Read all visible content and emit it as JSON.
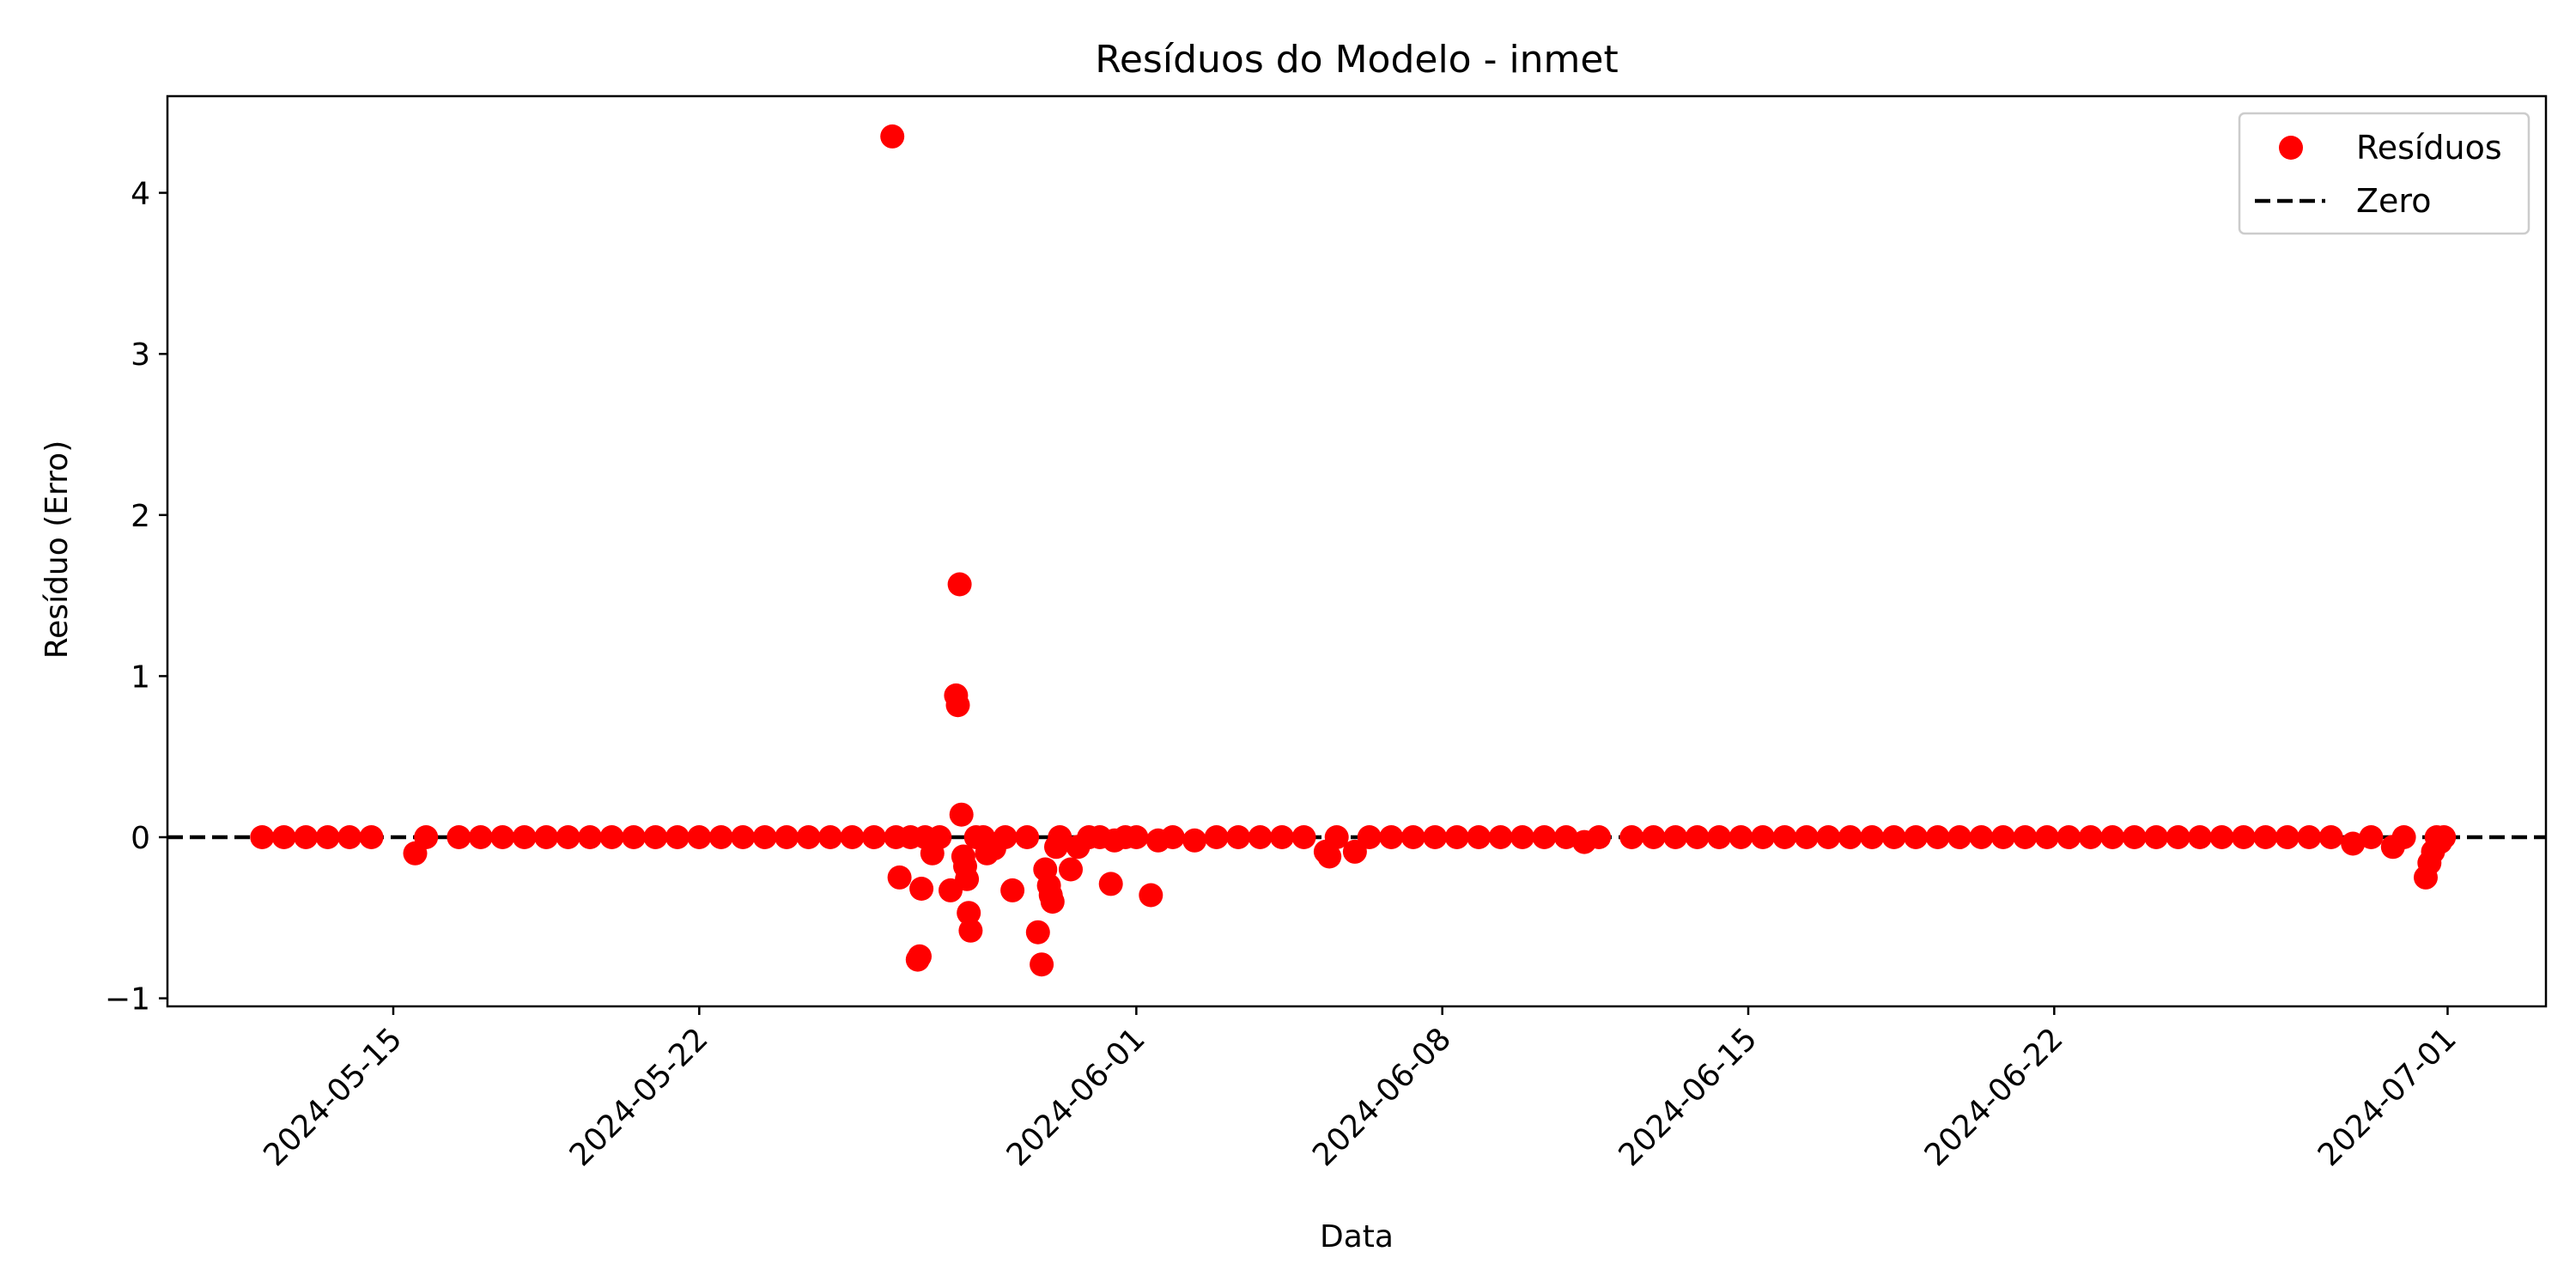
{
  "chart_data": {
    "type": "scatter",
    "title": "Resíduos do Modelo - inmet",
    "xlabel": "Data",
    "ylabel": "Resíduo (Erro)",
    "xlim": [
      "2024-05-09T20:00",
      "2024-07-03T06:00"
    ],
    "ylim": [
      -1.05,
      4.6
    ],
    "x_ticks": [
      "2024-05-15",
      "2024-05-22",
      "2024-06-01",
      "2024-06-08",
      "2024-06-15",
      "2024-06-22",
      "2024-07-01"
    ],
    "y_ticks": [
      -1,
      0,
      1,
      2,
      3,
      4
    ],
    "y_tick_labels": [
      "−1",
      "0",
      "1",
      "2",
      "3",
      "4"
    ],
    "grid": false,
    "legend": {
      "location": "upper right",
      "entries": [
        {
          "label": "Resíduos",
          "marker": "circle",
          "color": "#ff0000"
        },
        {
          "label": "Zero",
          "marker": "dashed-line",
          "color": "#000000"
        }
      ]
    },
    "reference_line": {
      "y": 0,
      "style": "dashed",
      "color": "#000000"
    },
    "series": [
      {
        "name": "Resíduos",
        "color": "#ff0000",
        "points": [
          {
            "x": "2024-05-12T00:00",
            "y": 0
          },
          {
            "x": "2024-05-12T12:00",
            "y": 0
          },
          {
            "x": "2024-05-13T00:00",
            "y": 0
          },
          {
            "x": "2024-05-13T12:00",
            "y": 0
          },
          {
            "x": "2024-05-14T00:00",
            "y": 0
          },
          {
            "x": "2024-05-14T12:00",
            "y": 0
          },
          {
            "x": "2024-05-15T12:00",
            "y": -0.1
          },
          {
            "x": "2024-05-15T18:00",
            "y": 0
          },
          {
            "x": "2024-05-16T12:00",
            "y": 0
          },
          {
            "x": "2024-05-17T00:00",
            "y": 0
          },
          {
            "x": "2024-05-17T12:00",
            "y": 0
          },
          {
            "x": "2024-05-18T00:00",
            "y": 0
          },
          {
            "x": "2024-05-18T12:00",
            "y": 0
          },
          {
            "x": "2024-05-19T00:00",
            "y": 0
          },
          {
            "x": "2024-05-19T12:00",
            "y": 0
          },
          {
            "x": "2024-05-20T00:00",
            "y": 0
          },
          {
            "x": "2024-05-20T12:00",
            "y": 0
          },
          {
            "x": "2024-05-21T00:00",
            "y": 0
          },
          {
            "x": "2024-05-21T12:00",
            "y": 0
          },
          {
            "x": "2024-05-22T00:00",
            "y": 0
          },
          {
            "x": "2024-05-22T12:00",
            "y": 0
          },
          {
            "x": "2024-05-23T00:00",
            "y": 0
          },
          {
            "x": "2024-05-23T12:00",
            "y": 0
          },
          {
            "x": "2024-05-24T00:00",
            "y": 0
          },
          {
            "x": "2024-05-24T12:00",
            "y": 0
          },
          {
            "x": "2024-05-25T00:00",
            "y": 0
          },
          {
            "x": "2024-05-25T12:00",
            "y": 0
          },
          {
            "x": "2024-05-26T00:00",
            "y": 0
          },
          {
            "x": "2024-05-26T10:00",
            "y": 4.35
          },
          {
            "x": "2024-05-26T12:00",
            "y": 0
          },
          {
            "x": "2024-05-26T14:00",
            "y": -0.25
          },
          {
            "x": "2024-05-26T20:00",
            "y": 0
          },
          {
            "x": "2024-05-27T00:00",
            "y": -0.76
          },
          {
            "x": "2024-05-27T01:00",
            "y": -0.74
          },
          {
            "x": "2024-05-27T02:00",
            "y": -0.32
          },
          {
            "x": "2024-05-27T04:00",
            "y": 0
          },
          {
            "x": "2024-05-27T08:00",
            "y": -0.1
          },
          {
            "x": "2024-05-27T12:00",
            "y": 0
          },
          {
            "x": "2024-05-27T18:00",
            "y": -0.33
          },
          {
            "x": "2024-05-27T21:00",
            "y": 0.88
          },
          {
            "x": "2024-05-27T22:00",
            "y": 0.82
          },
          {
            "x": "2024-05-27T23:00",
            "y": 1.57
          },
          {
            "x": "2024-05-28T00:00",
            "y": 0.14
          },
          {
            "x": "2024-05-28T01:00",
            "y": -0.12
          },
          {
            "x": "2024-05-28T02:00",
            "y": -0.18
          },
          {
            "x": "2024-05-28T03:00",
            "y": -0.26
          },
          {
            "x": "2024-05-28T04:00",
            "y": -0.47
          },
          {
            "x": "2024-05-28T05:00",
            "y": -0.58
          },
          {
            "x": "2024-05-28T08:00",
            "y": 0
          },
          {
            "x": "2024-05-28T12:00",
            "y": 0
          },
          {
            "x": "2024-05-28T14:00",
            "y": -0.1
          },
          {
            "x": "2024-05-28T18:00",
            "y": -0.07
          },
          {
            "x": "2024-05-29T00:00",
            "y": 0
          },
          {
            "x": "2024-05-29T04:00",
            "y": -0.33
          },
          {
            "x": "2024-05-29T12:00",
            "y": 0
          },
          {
            "x": "2024-05-29T18:00",
            "y": -0.59
          },
          {
            "x": "2024-05-29T20:00",
            "y": -0.79
          },
          {
            "x": "2024-05-29T22:00",
            "y": -0.2
          },
          {
            "x": "2024-05-30T00:00",
            "y": -0.3
          },
          {
            "x": "2024-05-30T01:00",
            "y": -0.36
          },
          {
            "x": "2024-05-30T02:00",
            "y": -0.4
          },
          {
            "x": "2024-05-30T04:00",
            "y": -0.06
          },
          {
            "x": "2024-05-30T06:00",
            "y": 0
          },
          {
            "x": "2024-05-30T12:00",
            "y": -0.2
          },
          {
            "x": "2024-05-30T16:00",
            "y": -0.06
          },
          {
            "x": "2024-05-30T22:00",
            "y": 0
          },
          {
            "x": "2024-05-31T04:00",
            "y": 0
          },
          {
            "x": "2024-05-31T10:00",
            "y": -0.29
          },
          {
            "x": "2024-05-31T12:00",
            "y": -0.02
          },
          {
            "x": "2024-05-31T18:00",
            "y": 0
          },
          {
            "x": "2024-06-01T00:00",
            "y": 0
          },
          {
            "x": "2024-06-01T08:00",
            "y": -0.36
          },
          {
            "x": "2024-06-01T12:00",
            "y": -0.02
          },
          {
            "x": "2024-06-01T20:00",
            "y": 0
          },
          {
            "x": "2024-06-02T08:00",
            "y": -0.02
          },
          {
            "x": "2024-06-02T20:00",
            "y": 0
          },
          {
            "x": "2024-06-03T08:00",
            "y": 0
          },
          {
            "x": "2024-06-03T20:00",
            "y": 0
          },
          {
            "x": "2024-06-04T08:00",
            "y": 0
          },
          {
            "x": "2024-06-04T20:00",
            "y": 0
          },
          {
            "x": "2024-06-05T08:00",
            "y": -0.09
          },
          {
            "x": "2024-06-05T10:00",
            "y": -0.12
          },
          {
            "x": "2024-06-05T14:00",
            "y": 0
          },
          {
            "x": "2024-06-06T00:00",
            "y": -0.09
          },
          {
            "x": "2024-06-06T08:00",
            "y": 0
          },
          {
            "x": "2024-06-06T20:00",
            "y": 0
          },
          {
            "x": "2024-06-07T08:00",
            "y": 0
          },
          {
            "x": "2024-06-07T20:00",
            "y": 0
          },
          {
            "x": "2024-06-08T08:00",
            "y": 0
          },
          {
            "x": "2024-06-08T20:00",
            "y": 0
          },
          {
            "x": "2024-06-09T08:00",
            "y": 0
          },
          {
            "x": "2024-06-09T20:00",
            "y": 0
          },
          {
            "x": "2024-06-10T08:00",
            "y": 0
          },
          {
            "x": "2024-06-10T20:00",
            "y": 0
          },
          {
            "x": "2024-06-11T06:00",
            "y": -0.03
          },
          {
            "x": "2024-06-11T14:00",
            "y": 0
          },
          {
            "x": "2024-06-12T08:00",
            "y": 0
          },
          {
            "x": "2024-06-12T20:00",
            "y": 0
          },
          {
            "x": "2024-06-13T08:00",
            "y": 0
          },
          {
            "x": "2024-06-13T20:00",
            "y": 0
          },
          {
            "x": "2024-06-14T08:00",
            "y": 0
          },
          {
            "x": "2024-06-14T20:00",
            "y": 0
          },
          {
            "x": "2024-06-15T08:00",
            "y": 0
          },
          {
            "x": "2024-06-15T20:00",
            "y": 0
          },
          {
            "x": "2024-06-16T08:00",
            "y": 0
          },
          {
            "x": "2024-06-16T20:00",
            "y": 0
          },
          {
            "x": "2024-06-17T08:00",
            "y": 0
          },
          {
            "x": "2024-06-17T20:00",
            "y": 0
          },
          {
            "x": "2024-06-18T08:00",
            "y": 0
          },
          {
            "x": "2024-06-18T20:00",
            "y": 0
          },
          {
            "x": "2024-06-19T08:00",
            "y": 0
          },
          {
            "x": "2024-06-19T20:00",
            "y": 0
          },
          {
            "x": "2024-06-20T08:00",
            "y": 0
          },
          {
            "x": "2024-06-20T20:00",
            "y": 0
          },
          {
            "x": "2024-06-21T08:00",
            "y": 0
          },
          {
            "x": "2024-06-21T20:00",
            "y": 0
          },
          {
            "x": "2024-06-22T08:00",
            "y": 0
          },
          {
            "x": "2024-06-22T20:00",
            "y": 0
          },
          {
            "x": "2024-06-23T08:00",
            "y": 0
          },
          {
            "x": "2024-06-23T20:00",
            "y": 0
          },
          {
            "x": "2024-06-24T08:00",
            "y": 0
          },
          {
            "x": "2024-06-24T20:00",
            "y": 0
          },
          {
            "x": "2024-06-25T08:00",
            "y": 0
          },
          {
            "x": "2024-06-25T20:00",
            "y": 0
          },
          {
            "x": "2024-06-26T08:00",
            "y": 0
          },
          {
            "x": "2024-06-26T20:00",
            "y": 0
          },
          {
            "x": "2024-06-27T08:00",
            "y": 0
          },
          {
            "x": "2024-06-27T20:00",
            "y": 0
          },
          {
            "x": "2024-06-28T08:00",
            "y": 0
          },
          {
            "x": "2024-06-28T20:00",
            "y": -0.04
          },
          {
            "x": "2024-06-29T06:00",
            "y": 0
          },
          {
            "x": "2024-06-29T18:00",
            "y": -0.06
          },
          {
            "x": "2024-06-30T00:00",
            "y": 0
          },
          {
            "x": "2024-06-30T12:00",
            "y": -0.25
          },
          {
            "x": "2024-06-30T14:00",
            "y": -0.16
          },
          {
            "x": "2024-06-30T16:00",
            "y": -0.09
          },
          {
            "x": "2024-06-30T18:00",
            "y": 0
          },
          {
            "x": "2024-06-30T20:00",
            "y": -0.03
          },
          {
            "x": "2024-06-30T22:00",
            "y": 0
          }
        ]
      }
    ]
  }
}
